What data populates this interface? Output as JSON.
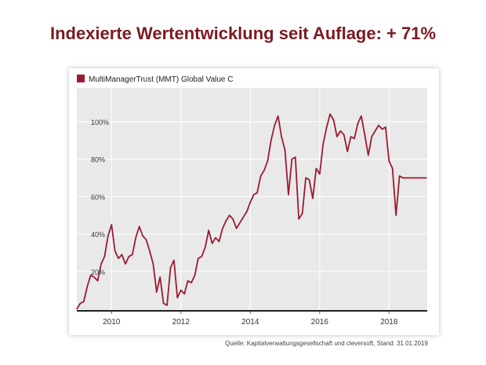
{
  "headline": "Indexierte Wertentwicklung seit Auflage: + 71%",
  "source": "Quelle: Kapitalverwaltungsgesellschaft und cleversoft, Stand: 31.01.2019",
  "colors": {
    "title": "#7b1a22",
    "series": "#9b1b30",
    "plot_bg": "#e9e9e9",
    "grid": "#ffffff"
  },
  "chart_data": {
    "type": "line",
    "title": "",
    "xlabel": "",
    "ylabel": "",
    "xlim": [
      2009.0,
      2019.1
    ],
    "ylim": [
      -0.01,
      1.18
    ],
    "x_ticks": [
      {
        "value": 2010,
        "label": "2010"
      },
      {
        "value": 2012,
        "label": "2012"
      },
      {
        "value": 2014,
        "label": "2014"
      },
      {
        "value": 2016,
        "label": "2016"
      },
      {
        "value": 2018,
        "label": "2018"
      }
    ],
    "y_ticks": [
      {
        "value": 0.2,
        "label": "20%"
      },
      {
        "value": 0.4,
        "label": "40%"
      },
      {
        "value": 0.6,
        "label": "60%"
      },
      {
        "value": 0.8,
        "label": "80%"
      },
      {
        "value": 1.0,
        "label": "100%"
      }
    ],
    "grid": true,
    "legend_position": "top-left",
    "series": [
      {
        "name": "MultiManagerTrust (MMT) Global Value C",
        "x": [
          2009.0,
          2009.1,
          2009.2,
          2009.3,
          2009.4,
          2009.5,
          2009.6,
          2009.7,
          2009.8,
          2009.9,
          2010.0,
          2010.1,
          2010.2,
          2010.3,
          2010.4,
          2010.5,
          2010.6,
          2010.7,
          2010.8,
          2010.9,
          2011.0,
          2011.1,
          2011.2,
          2011.3,
          2011.4,
          2011.5,
          2011.6,
          2011.7,
          2011.8,
          2011.9,
          2012.0,
          2012.1,
          2012.2,
          2012.3,
          2012.4,
          2012.5,
          2012.6,
          2012.7,
          2012.8,
          2012.9,
          2013.0,
          2013.1,
          2013.2,
          2013.3,
          2013.4,
          2013.5,
          2013.6,
          2013.7,
          2013.8,
          2013.9,
          2014.0,
          2014.1,
          2014.2,
          2014.3,
          2014.4,
          2014.5,
          2014.6,
          2014.7,
          2014.8,
          2014.9,
          2015.0,
          2015.1,
          2015.2,
          2015.3,
          2015.4,
          2015.5,
          2015.6,
          2015.7,
          2015.8,
          2015.9,
          2016.0,
          2016.1,
          2016.2,
          2016.3,
          2016.4,
          2016.5,
          2016.6,
          2016.7,
          2016.8,
          2016.9,
          2017.0,
          2017.1,
          2017.2,
          2017.3,
          2017.4,
          2017.5,
          2017.6,
          2017.7,
          2017.8,
          2017.9,
          2018.0,
          2018.1,
          2018.2,
          2018.3,
          2018.4,
          2018.5,
          2018.6,
          2018.7,
          2018.8,
          2018.9,
          2019.0,
          2019.08
        ],
        "values": [
          0.0,
          0.03,
          0.04,
          0.12,
          0.18,
          0.17,
          0.15,
          0.24,
          0.28,
          0.39,
          0.45,
          0.31,
          0.27,
          0.29,
          0.24,
          0.28,
          0.29,
          0.38,
          0.44,
          0.39,
          0.37,
          0.31,
          0.24,
          0.09,
          0.17,
          0.03,
          0.02,
          0.22,
          0.26,
          0.06,
          0.1,
          0.08,
          0.15,
          0.14,
          0.18,
          0.27,
          0.28,
          0.33,
          0.42,
          0.35,
          0.38,
          0.36,
          0.43,
          0.47,
          0.5,
          0.48,
          0.43,
          0.46,
          0.49,
          0.52,
          0.57,
          0.61,
          0.62,
          0.71,
          0.74,
          0.79,
          0.9,
          0.98,
          1.03,
          0.92,
          0.85,
          0.61,
          0.8,
          0.81,
          0.48,
          0.51,
          0.7,
          0.69,
          0.59,
          0.75,
          0.72,
          0.88,
          0.97,
          1.04,
          1.01,
          0.92,
          0.95,
          0.93,
          0.84,
          0.92,
          0.91,
          0.99,
          1.03,
          0.93,
          0.82,
          0.92,
          0.95,
          0.98,
          0.96,
          0.97,
          0.79,
          0.75,
          0.5,
          0.71,
          0.7,
          0.7,
          0.7,
          0.7,
          0.7,
          0.7,
          0.7,
          0.7
        ]
      }
    ]
  }
}
